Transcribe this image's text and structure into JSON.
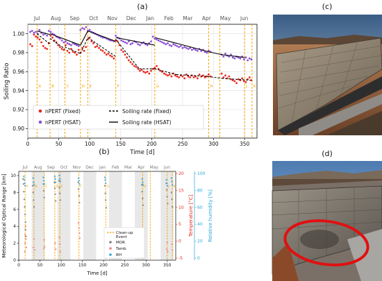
{
  "panel_labels": {
    "a": "(a)",
    "b": "(b)",
    "c": "(c)",
    "d": "(d)"
  },
  "colors": {
    "fixed": "#e8261b",
    "hsat": "#8a4fd6",
    "event": "#f4a300",
    "mor": "#7f7f7f",
    "tamb": "#f08080",
    "rh": "#2aa7d8",
    "highlight": "#e01010"
  },
  "photos": {
    "c": {
      "subject": "soiled photovoltaic module on a tracker, desert hills in background"
    },
    "d": {
      "subject": "dusty photovoltaic module with soiled corner circled in red"
    }
  },
  "chart_data": [
    {
      "type": "scatter",
      "id": "a",
      "xlabel": "Time [d]",
      "ylabel": "Soiling Ratio",
      "xlim": [
        0,
        370
      ],
      "ylim": [
        0.89,
        1.01
      ],
      "xticks": [
        "0",
        "50",
        "100",
        "150",
        "200",
        "250",
        "300",
        "350"
      ],
      "yticks": [
        "0.90",
        "0.92",
        "0.94",
        "0.96",
        "0.98",
        "1.00"
      ],
      "months": [
        "Jul",
        "Aug",
        "Sep",
        "Oct",
        "Nov",
        "Dec",
        "Jan",
        "Feb",
        "Mar",
        "Apr",
        "May",
        "jun"
      ],
      "events": [
        {
          "day": 15,
          "label": "A"
        },
        {
          "day": 36,
          "label": "B"
        },
        {
          "day": 60,
          "label": "C"
        },
        {
          "day": 85,
          "label": "D"
        },
        {
          "day": 97,
          "label": "E"
        },
        {
          "day": 142,
          "label": "F"
        },
        {
          "day": 205,
          "label": "G"
        },
        {
          "day": 292,
          "label": "H"
        },
        {
          "day": 310,
          "label": ""
        },
        {
          "day": 350,
          "label": "J"
        },
        {
          "day": 362,
          "label": "K"
        }
      ],
      "legend": [
        "nPERT (Fixed)",
        "nPERT (HSAT)",
        "Soiling rate (Fixed)",
        "Soiling rate (HSAT)"
      ],
      "grid": true,
      "legend_placement": "bottom-left",
      "series": [
        {
          "name": "nPERT (Fixed)",
          "kind": "points",
          "color_key": "fixed",
          "x": [
            4,
            7,
            10,
            13,
            16,
            19,
            22,
            25,
            28,
            31,
            34,
            37,
            40,
            43,
            46,
            49,
            52,
            55,
            58,
            61,
            64,
            67,
            70,
            73,
            76,
            79,
            82,
            85,
            88,
            91,
            94,
            97,
            100,
            103,
            106,
            109,
            112,
            115,
            118,
            121,
            124,
            127,
            130,
            133,
            136,
            139,
            142,
            145,
            148,
            151,
            154,
            157,
            160,
            163,
            166,
            169,
            172,
            175,
            178,
            181,
            184,
            187,
            190,
            193,
            196,
            199,
            202,
            205,
            208,
            211,
            214,
            217,
            220,
            223,
            226,
            229,
            232,
            235,
            238,
            241,
            244,
            247,
            250,
            253,
            256,
            259,
            262,
            265,
            268,
            271,
            274,
            277,
            280,
            283,
            286,
            289,
            292,
            295,
            313,
            316,
            319,
            322,
            325,
            328,
            331,
            334,
            337,
            340,
            343,
            346,
            349,
            352,
            355,
            358,
            361
          ],
          "y": [
            0.989,
            0.987,
            0.999,
            0.997,
            0.996,
            0.994,
            0.991,
            0.987,
            0.985,
            0.984,
            0.99,
            0.998,
            0.996,
            0.993,
            0.991,
            0.988,
            0.986,
            0.984,
            0.983,
            0.988,
            0.982,
            0.98,
            0.984,
            0.981,
            0.98,
            0.978,
            0.983,
            0.98,
            0.985,
            0.982,
            0.986,
            0.994,
            0.996,
            0.992,
            0.99,
            0.986,
            0.987,
            0.985,
            0.983,
            0.982,
            0.98,
            0.978,
            0.979,
            0.977,
            0.976,
            0.974,
            0.993,
            0.992,
            0.988,
            0.983,
            0.981,
            0.978,
            0.975,
            0.972,
            0.97,
            0.968,
            0.966,
            0.965,
            0.963,
            0.961,
            0.962,
            0.96,
            0.959,
            0.96,
            0.958,
            0.961,
            0.963,
            0.964,
            0.966,
            0.963,
            0.961,
            0.96,
            0.958,
            0.957,
            0.956,
            0.957,
            0.955,
            0.958,
            0.956,
            0.955,
            0.954,
            0.956,
            0.955,
            0.953,
            0.957,
            0.955,
            0.954,
            0.956,
            0.954,
            0.955,
            0.953,
            0.957,
            0.955,
            0.956,
            0.954,
            0.955,
            0.957,
            0.955,
            0.958,
            0.954,
            0.956,
            0.953,
            0.955,
            0.952,
            0.951,
            0.95,
            0.948,
            0.952,
            0.951,
            0.953,
            0.95,
            0.949,
            0.952,
            0.954,
            0.951
          ]
        },
        {
          "name": "nPERT (HSAT)",
          "kind": "points",
          "color_key": "hsat",
          "x": [
            4,
            7,
            10,
            13,
            16,
            19,
            22,
            25,
            28,
            31,
            34,
            37,
            40,
            43,
            46,
            49,
            52,
            55,
            58,
            61,
            64,
            67,
            70,
            73,
            76,
            79,
            82,
            85,
            88,
            91,
            94,
            97,
            100,
            103,
            106,
            109,
            112,
            115,
            118,
            121,
            124,
            127,
            130,
            133,
            136,
            139,
            142,
            145,
            148,
            151,
            154,
            157,
            160,
            163,
            166,
            169,
            172,
            175,
            178,
            181,
            184,
            187,
            190,
            193,
            196,
            199,
            202,
            205,
            208,
            211,
            214,
            217,
            220,
            223,
            226,
            229,
            232,
            235,
            238,
            241,
            244,
            247,
            250,
            253,
            256,
            259,
            262,
            265,
            268,
            271,
            274,
            277,
            280,
            283,
            286,
            289,
            292,
            295,
            313,
            316,
            319,
            322,
            325,
            328,
            331,
            334,
            337,
            340,
            343,
            346,
            349,
            352,
            355,
            358,
            361
          ],
          "y": [
            1.002,
            1.003,
            1.001,
            1.002,
            1.0,
            1.004,
            1.001,
            0.999,
            1.0,
            0.998,
            1.003,
            1.002,
            1.0,
            0.999,
            0.997,
            0.996,
            0.995,
            0.993,
            0.991,
            0.992,
            0.99,
            0.989,
            0.988,
            0.99,
            0.989,
            0.988,
            0.987,
            1.004,
            1.006,
            1.005,
            1.007,
            1.003,
            1.004,
            1.002,
            1.001,
            1.0,
            0.999,
            0.998,
            0.997,
            0.996,
            0.996,
            0.995,
            0.994,
            0.993,
            0.993,
            0.992,
            0.998,
            0.996,
            0.995,
            0.993,
            0.992,
            0.991,
            0.99,
            0.992,
            0.989,
            0.99,
            0.992,
            0.991,
            0.989,
            0.988,
            0.99,
            0.991,
            0.989,
            0.988,
            0.99,
            0.992,
            0.997,
            0.995,
            0.994,
            0.993,
            0.992,
            0.991,
            0.99,
            0.989,
            0.99,
            0.988,
            0.987,
            0.989,
            0.988,
            0.987,
            0.986,
            0.987,
            0.985,
            0.986,
            0.985,
            0.984,
            0.985,
            0.983,
            0.984,
            0.983,
            0.982,
            0.984,
            0.982,
            0.983,
            0.981,
            0.98,
            0.982,
            0.981,
            0.978,
            0.976,
            0.979,
            0.977,
            0.976,
            0.978,
            0.975,
            0.974,
            0.976,
            0.975,
            0.974,
            0.976,
            0.973,
            0.975,
            0.972,
            0.974,
            0.973
          ]
        },
        {
          "name": "Soiling rate (Fixed)",
          "kind": "line",
          "dash": true,
          "color_key": "black",
          "x": [
            15,
            36,
            36,
            60,
            60,
            85,
            97,
            142,
            142,
            180,
            205,
            240,
            290,
            313,
            360
          ],
          "y": [
            1.0,
            0.989,
            0.995,
            0.984,
            0.986,
            0.979,
            0.996,
            0.976,
            0.994,
            0.963,
            0.963,
            0.957,
            0.955,
            0.953,
            0.951
          ]
        },
        {
          "name": "Soiling rate (HSAT)",
          "kind": "line",
          "dash": false,
          "color_key": "black",
          "x": [
            15,
            36,
            36,
            85,
            97,
            142,
            142,
            205,
            205,
            292,
            313,
            350
          ],
          "y": [
            1.003,
            0.999,
            1.0,
            0.988,
            1.003,
            0.992,
            0.996,
            0.988,
            0.996,
            0.981,
            0.978,
            0.975
          ]
        }
      ]
    },
    {
      "type": "scatter",
      "id": "b",
      "xlabel": "Time [d]",
      "ylabel": "Meteorological Optical Range [km]",
      "ylabel_right1": "Temperature [°C]",
      "ylabel_right2": "Relative humidity [%]",
      "xlim": [
        0,
        370
      ],
      "ylim": [
        0,
        10.5
      ],
      "xticks": [
        "0",
        "50",
        "100",
        "150",
        "200",
        "250",
        "300",
        "350"
      ],
      "yticks": [
        "0",
        "2",
        "4",
        "6",
        "8",
        "10"
      ],
      "right1_ticks": [
        "-5",
        "0",
        "5",
        "10",
        "15",
        "20"
      ],
      "right2_ticks": [
        "0",
        "20",
        "40",
        "60",
        "80",
        "100"
      ],
      "months": [
        "Jul",
        "Aug",
        "Sep",
        "Oct",
        "Nov",
        "Dec",
        "Jan",
        "Feb",
        "Mar",
        "Apr",
        "May",
        "jun"
      ],
      "shaded_months_index": [
        1,
        3,
        5,
        7,
        9,
        11
      ],
      "events": [
        {
          "day": 15,
          "label": "A"
        },
        {
          "day": 36,
          "label": "B"
        },
        {
          "day": 60,
          "label": "C"
        },
        {
          "day": 85,
          "label": "D"
        },
        {
          "day": 97,
          "label": "E"
        },
        {
          "day": 142,
          "label": "F"
        },
        {
          "day": 205,
          "label": "G"
        },
        {
          "day": 292,
          "label": "H"
        },
        {
          "day": 310,
          "label": ""
        },
        {
          "day": 350,
          "label": "J"
        },
        {
          "day": 362,
          "label": "K"
        }
      ],
      "legend": [
        "Clean-up\nEvent",
        "MOR",
        "Tamb",
        "RH"
      ],
      "legend_placement": "center-right",
      "series": [
        {
          "name": "MOR",
          "color_key": "mor",
          "x": [
            10,
            11,
            12,
            13,
            14,
            15,
            16,
            16,
            17,
            33,
            34,
            35,
            36,
            58,
            59,
            60,
            84,
            85,
            86,
            87,
            95,
            96,
            97,
            98,
            140,
            141,
            142,
            143,
            203,
            204,
            205,
            206,
            290,
            291,
            292,
            293,
            348,
            349,
            350,
            351,
            360,
            361,
            362
          ],
          "y": [
            9.6,
            9.0,
            8.1,
            7.2,
            6.3,
            5.4,
            4.5,
            3.6,
            2.8,
            8.8,
            8.0,
            7.1,
            6.3,
            9.0,
            8.2,
            7.4,
            9.2,
            8.5,
            7.8,
            7.0,
            9.4,
            8.6,
            7.9,
            7.1,
            9.2,
            8.4,
            7.6,
            6.8,
            8.8,
            7.9,
            7.1,
            6.2,
            8.9,
            8.1,
            7.3,
            6.5,
            9.1,
            8.3,
            7.5,
            6.7,
            8.0,
            7.2,
            6.3
          ]
        },
        {
          "name": "Tamb",
          "color_key": "tamb",
          "x": [
            14,
            15,
            15,
            16,
            17,
            18,
            35,
            36,
            37,
            59,
            60,
            61,
            86,
            87,
            96,
            97,
            98,
            141,
            142,
            143,
            144,
            204,
            205,
            206,
            291,
            292,
            293,
            349,
            350,
            351,
            361,
            362
          ],
          "y": [
            1.0,
            2.0,
            3.0,
            4.0,
            2.5,
            1.5,
            1.5,
            2.5,
            1.2,
            1.4,
            2.4,
            1.6,
            2.0,
            1.3,
            2.7,
            1.9,
            1.0,
            4.4,
            3.8,
            3.2,
            2.6,
            1.2,
            2.0,
            1.0,
            2.2,
            1.4,
            0.9,
            1.3,
            2.1,
            1.0,
            1.9,
            1.2
          ]
        },
        {
          "name": "RH",
          "color_key": "rh",
          "x": [
            12,
            13,
            14,
            15,
            34,
            35,
            36,
            58,
            59,
            60,
            85,
            86,
            87,
            96,
            97,
            98,
            141,
            142,
            143,
            203,
            204,
            205,
            291,
            292,
            293,
            348,
            349,
            350,
            360,
            361,
            362
          ],
          "y": [
            9.9,
            9.5,
            9.1,
            8.8,
            9.7,
            9.2,
            8.9,
            9.8,
            9.4,
            9.0,
            9.9,
            9.6,
            9.2,
            10.0,
            9.6,
            9.3,
            9.7,
            9.4,
            9.0,
            9.8,
            9.5,
            9.1,
            9.6,
            9.2,
            8.9,
            9.5,
            9.1,
            8.8,
            9.7,
            9.3,
            8.9
          ]
        }
      ]
    }
  ]
}
